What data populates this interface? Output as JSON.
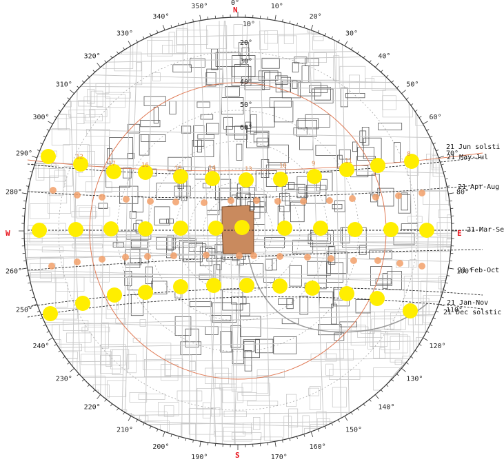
{
  "colors": {
    "sun": "#ffee00",
    "sun_secondary": "#f2a06a",
    "cardinal": "#e8121b",
    "horizon_ring": "#e07a55",
    "building_highlight": "#c98a5e",
    "map_lines": "#8a8a8a"
  },
  "cardinals": {
    "n": "N",
    "s": "S",
    "e": "E",
    "w": "W"
  },
  "azimuth_labels": [
    "0°",
    "10°",
    "20°",
    "30°",
    "40°",
    "50°",
    "60°",
    "70°",
    "80°",
    "100°",
    "110°",
    "120°",
    "130°",
    "140°",
    "150°",
    "160°",
    "170°",
    "190°",
    "200°",
    "210°",
    "220°",
    "230°",
    "240°",
    "250°",
    "260°",
    "280°",
    "290°",
    "300°",
    "310°",
    "320°",
    "330°",
    "340°",
    "350°"
  ],
  "altitude_labels": [
    "10°",
    "20°",
    "30°",
    "40°",
    "50°",
    "60°"
  ],
  "path_labels": [
    "21 Jun  solsti",
    "21 May-Jul",
    "21 Apr-Aug",
    "21 Mar-Se",
    "21 Feb-Oct",
    "21 Jan-Nov",
    "21 Dec  solstic"
  ],
  "small_numbers": [
    "17",
    "16",
    "15",
    "10",
    "9",
    "8",
    "14",
    "13",
    "12",
    "11"
  ]
}
